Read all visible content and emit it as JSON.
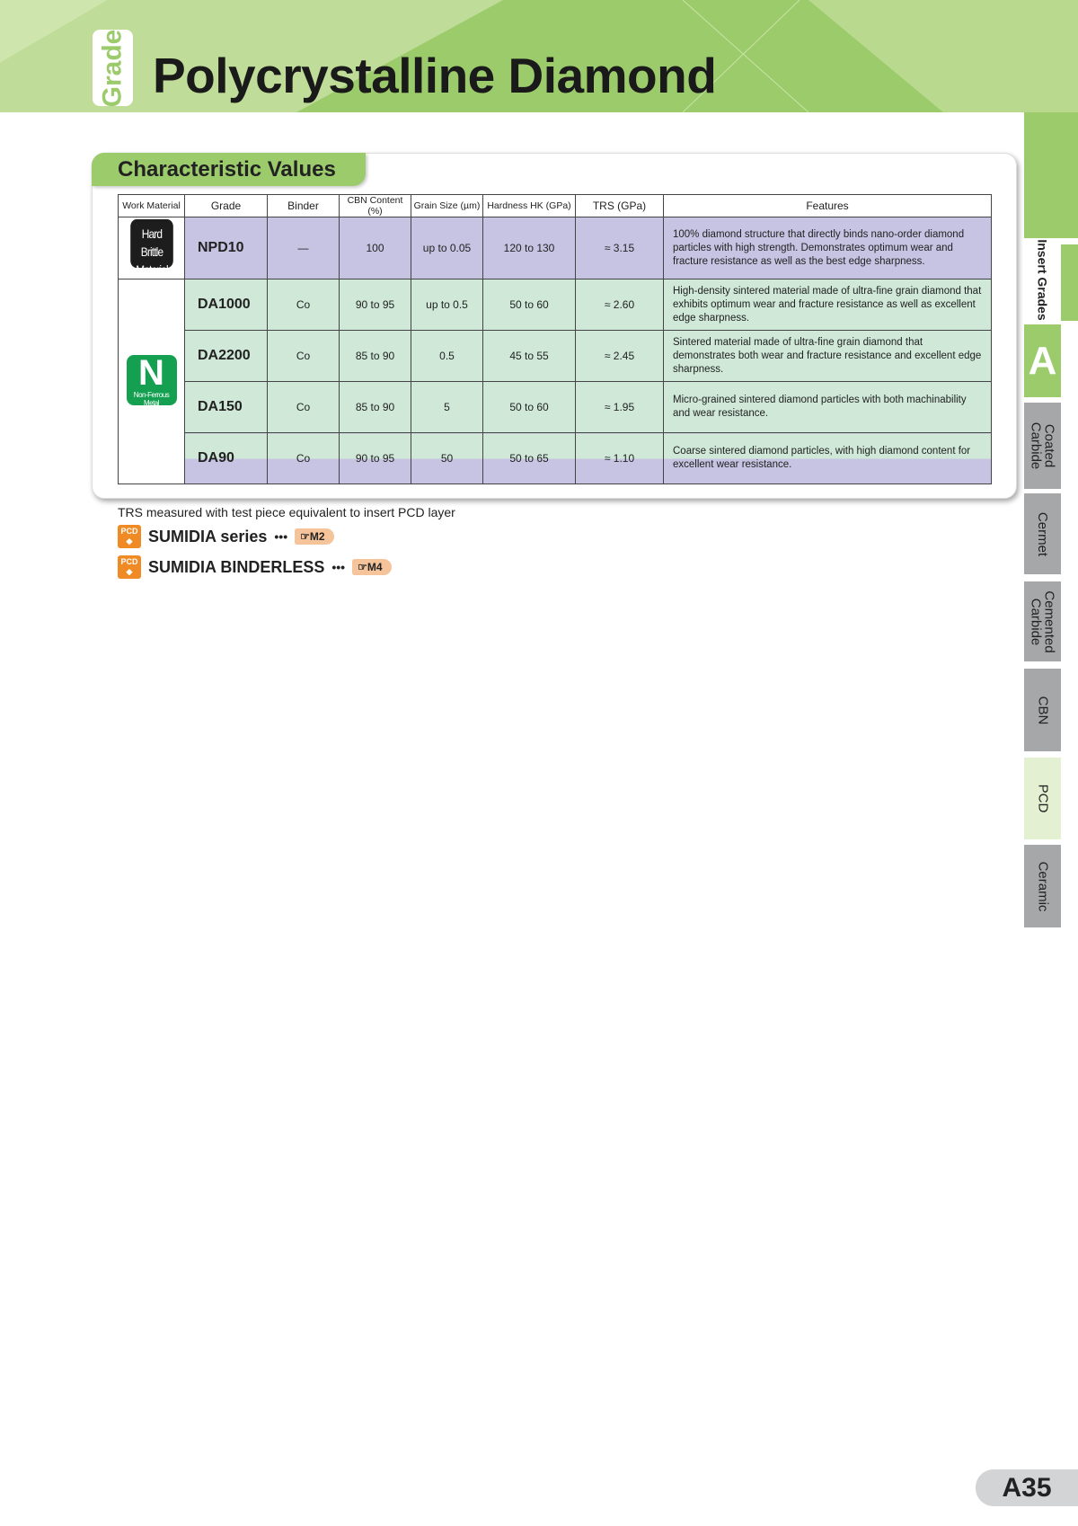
{
  "header": {
    "badge": "Grade",
    "title": "Polycrystalline Diamond"
  },
  "section": {
    "title": "Characteristic Values"
  },
  "table": {
    "columns": [
      "Work Material",
      "Grade",
      "Binder",
      "CBN Content (%)",
      "Grain Size (µm)",
      "Hardness HK (GPa)",
      "TRS (GPa)",
      "Features"
    ],
    "work_materials": {
      "hard_brittle": "Hard Brittle Material",
      "n_letter": "N",
      "n_label": "Non-Ferrous Metal"
    },
    "rows": [
      {
        "grade": "NPD10",
        "binder": "—",
        "cbn": "100",
        "grain": "up to 0.05",
        "hardness": "120 to 130",
        "trs": "≈ 3.15",
        "features": "100% diamond structure that directly binds nano-order diamond particles with high strength. Demonstrates optimum wear and fracture resistance as well as the best edge sharpness."
      },
      {
        "grade": "DA1000",
        "binder": "Co",
        "cbn": "90 to 95",
        "grain": "up to 0.5",
        "hardness": "50 to 60",
        "trs": "≈ 2.60",
        "features": "High-density sintered material made of ultra-fine grain diamond that exhibits optimum wear and fracture resistance as well as excellent edge sharpness."
      },
      {
        "grade": "DA2200",
        "binder": "Co",
        "cbn": "85 to 90",
        "grain": "0.5",
        "hardness": "45 to 55",
        "trs": "≈ 2.45",
        "features": "Sintered material made of ultra-fine grain diamond that demonstrates both wear and fracture resistance and excellent edge sharpness."
      },
      {
        "grade": "DA150",
        "binder": "Co",
        "cbn": "85 to 90",
        "grain": "5",
        "hardness": "50 to 60",
        "trs": "≈ 1.95",
        "features": "Micro-grained sintered diamond particles with both machinability and wear resistance."
      },
      {
        "grade": "DA90",
        "binder": "Co",
        "cbn": "90 to 95",
        "grain": "50",
        "hardness": "50 to 65",
        "trs": "≈ 1.10",
        "features": "Coarse sintered diamond particles, with high diamond content for excellent wear resistance."
      }
    ]
  },
  "note": "TRS measured with test piece equivalent to insert PCD layer",
  "refs": [
    {
      "icon": "PCD",
      "label": "SUMIDIA series",
      "dots": "•••",
      "page": "☞M2"
    },
    {
      "icon": "PCD",
      "label": "SUMIDIA BINDERLESS",
      "dots": "•••",
      "page": "☞M4"
    }
  ],
  "side_tabs": [
    "Insert Grades",
    "A",
    "Coated Carbide",
    "Cermet",
    "Cemented Carbide",
    "CBN",
    "PCD",
    "Ceramic"
  ],
  "page_number": "A35",
  "colors": {
    "green": "#9ccb6c",
    "purple_row": "#c7c3e2",
    "green_row": "#cfe8d8",
    "n_badge": "#14a050",
    "pcd_icon": "#f08a24"
  }
}
